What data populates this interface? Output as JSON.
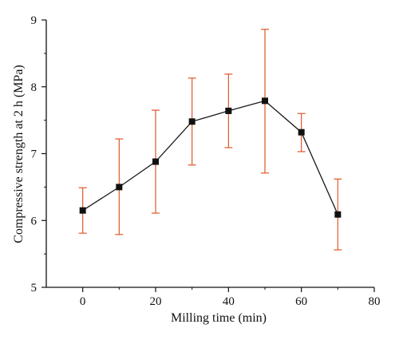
{
  "chart_data": {
    "type": "line",
    "title": "",
    "xlabel": "Milling time (min)",
    "ylabel": "Compressive strength at 2 h (MPa)",
    "xlim": [
      -10,
      80
    ],
    "ylim": [
      5,
      9
    ],
    "xticks": [
      0,
      20,
      40,
      60,
      80
    ],
    "yticks": [
      5,
      6,
      7,
      8,
      9
    ],
    "x_tick_labels": [
      "0",
      "20",
      "40",
      "60",
      "80"
    ],
    "y_tick_labels": [
      "5",
      "6",
      "7",
      "8",
      "9"
    ],
    "grid": false,
    "series": [
      {
        "x": [
          0,
          10,
          20,
          30,
          40,
          50,
          60,
          70
        ],
        "y": [
          6.15,
          6.5,
          6.88,
          7.48,
          7.64,
          7.79,
          7.32,
          6.09
        ],
        "error_lower": [
          0.34,
          0.71,
          0.77,
          0.65,
          0.55,
          1.08,
          0.29,
          0.53
        ],
        "error_upper": [
          0.34,
          0.72,
          0.77,
          0.65,
          0.55,
          1.07,
          0.28,
          0.53
        ]
      }
    ],
    "colors": {
      "line": "#1a1a1a",
      "marker": "#111111",
      "error_bar": "#e0572a",
      "axis": "#111111"
    }
  }
}
